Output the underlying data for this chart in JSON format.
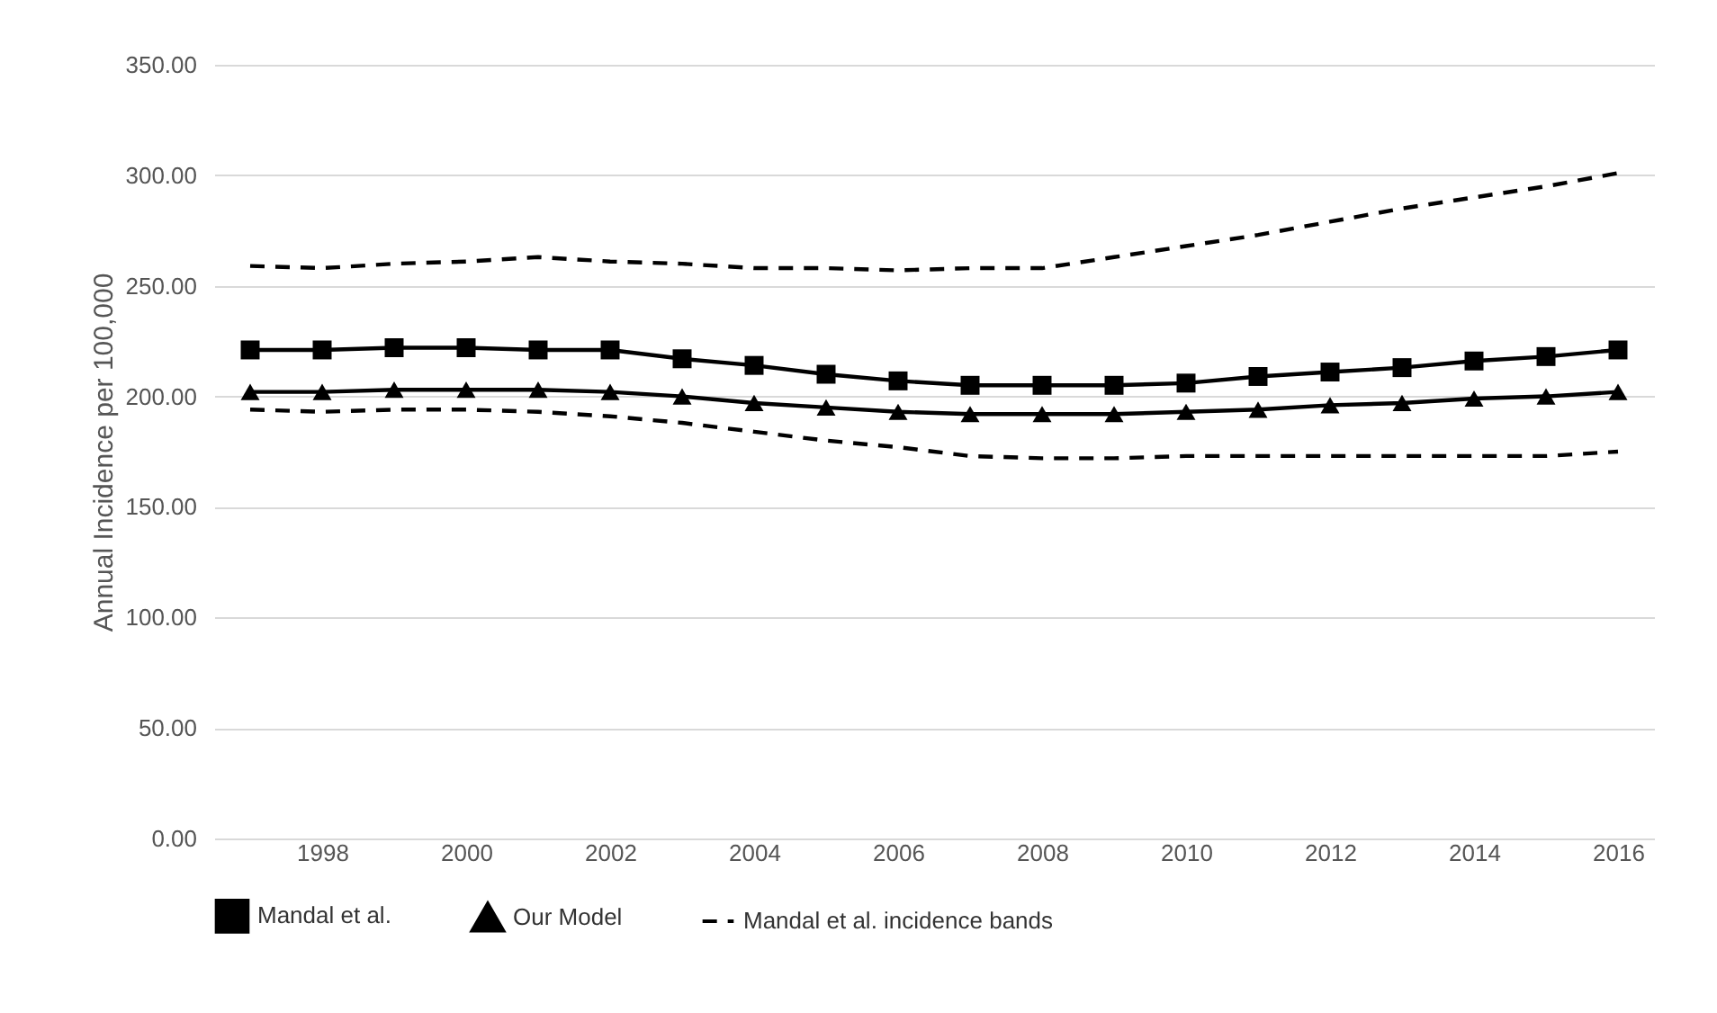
{
  "chart_data": {
    "type": "line",
    "ylabel": "Annual Incidence per 100,000",
    "x": [
      1997,
      1998,
      1999,
      2000,
      2001,
      2002,
      2003,
      2004,
      2005,
      2006,
      2007,
      2008,
      2009,
      2010,
      2011,
      2012,
      2013,
      2014,
      2015,
      2016
    ],
    "xlim": [
      1996.5,
      2016.5
    ],
    "xticks": [
      1998,
      2000,
      2002,
      2004,
      2006,
      2008,
      2010,
      2012,
      2014,
      2016
    ],
    "ylim": [
      0,
      350
    ],
    "yticks": [
      {
        "value": 0,
        "label": "0.00"
      },
      {
        "value": 50,
        "label": "50.00"
      },
      {
        "value": 100,
        "label": "100.00"
      },
      {
        "value": 150,
        "label": "150.00"
      },
      {
        "value": 200,
        "label": "200.00"
      },
      {
        "value": 250,
        "label": "250.00"
      },
      {
        "value": 300,
        "label": "300.00"
      },
      {
        "value": 350,
        "label": "350.00"
      }
    ],
    "grid": "y",
    "legend": "bottom",
    "series": [
      {
        "name": "Mandal et al.",
        "color": "#000000",
        "marker": "square",
        "line_style": "solid",
        "values": [
          221,
          221,
          222,
          222,
          221,
          221,
          217,
          214,
          210,
          207,
          205,
          205,
          205,
          206,
          209,
          211,
          213,
          216,
          218,
          221
        ]
      },
      {
        "name": "Our Model",
        "color": "#000000",
        "marker": "triangle",
        "line_style": "solid",
        "values": [
          202,
          202,
          203,
          203,
          203,
          202,
          200,
          197,
          195,
          193,
          192,
          192,
          192,
          193,
          194,
          196,
          197,
          199,
          200,
          202
        ]
      },
      {
        "name": "Mandal et al. incidence bands",
        "color": "#000000",
        "marker": "none",
        "line_style": "dashed",
        "values": [
          259,
          258,
          260,
          261,
          263,
          261,
          260,
          258,
          258,
          257,
          258,
          258,
          263,
          268,
          273,
          279,
          285,
          290,
          295,
          301
        ]
      },
      {
        "color": "#000000",
        "marker": "none",
        "line_style": "dashed",
        "values": [
          194,
          193,
          194,
          194,
          193,
          191,
          188,
          184,
          180,
          177,
          173,
          172,
          172,
          173,
          173,
          173,
          173,
          173,
          173,
          175
        ]
      }
    ]
  }
}
